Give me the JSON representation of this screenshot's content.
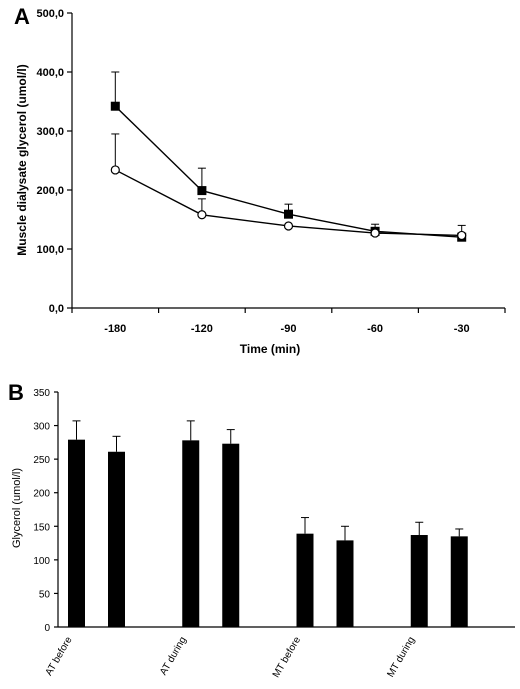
{
  "chart_data": [
    {
      "panel": "A",
      "type": "line",
      "xlabel": "Time (min)",
      "ylabel": "Muscle dialysate glycerol (umol/l)",
      "categories": [
        "-180",
        "-120",
        "-90",
        "-60",
        "-30"
      ],
      "ylim": [
        0,
        500
      ],
      "yticks": [
        "0,0",
        "100,0",
        "200,0",
        "300,0",
        "400,0",
        "500,0"
      ],
      "ytick_values": [
        0,
        100,
        200,
        300,
        400,
        500
      ],
      "grid": false,
      "series": [
        {
          "marker": "filled-square",
          "values": [
            342,
            199,
            159,
            130,
            120
          ],
          "errors": [
            58,
            38,
            17,
            12,
            20
          ]
        },
        {
          "marker": "open-circle",
          "values": [
            234,
            158,
            139,
            127,
            123
          ],
          "errors": [
            61,
            27,
            0,
            8,
            0
          ]
        }
      ]
    },
    {
      "panel": "B",
      "type": "bar",
      "ylabel": "Glycerol (umol/l)",
      "categories": [
        "AT before",
        "AT during",
        "MT before",
        "MT during"
      ],
      "ylim": [
        0,
        350
      ],
      "yticks": [
        "0",
        "50",
        "100",
        "150",
        "200",
        "250",
        "300",
        "350"
      ],
      "ytick_values": [
        0,
        50,
        100,
        150,
        200,
        250,
        300,
        350
      ],
      "grid": false,
      "series": [
        {
          "values": [
            279,
            278,
            139,
            137
          ],
          "errors": [
            28,
            29,
            24,
            19
          ]
        },
        {
          "values": [
            261,
            273,
            129,
            135
          ],
          "errors": [
            23,
            21,
            21,
            11
          ]
        }
      ]
    }
  ]
}
